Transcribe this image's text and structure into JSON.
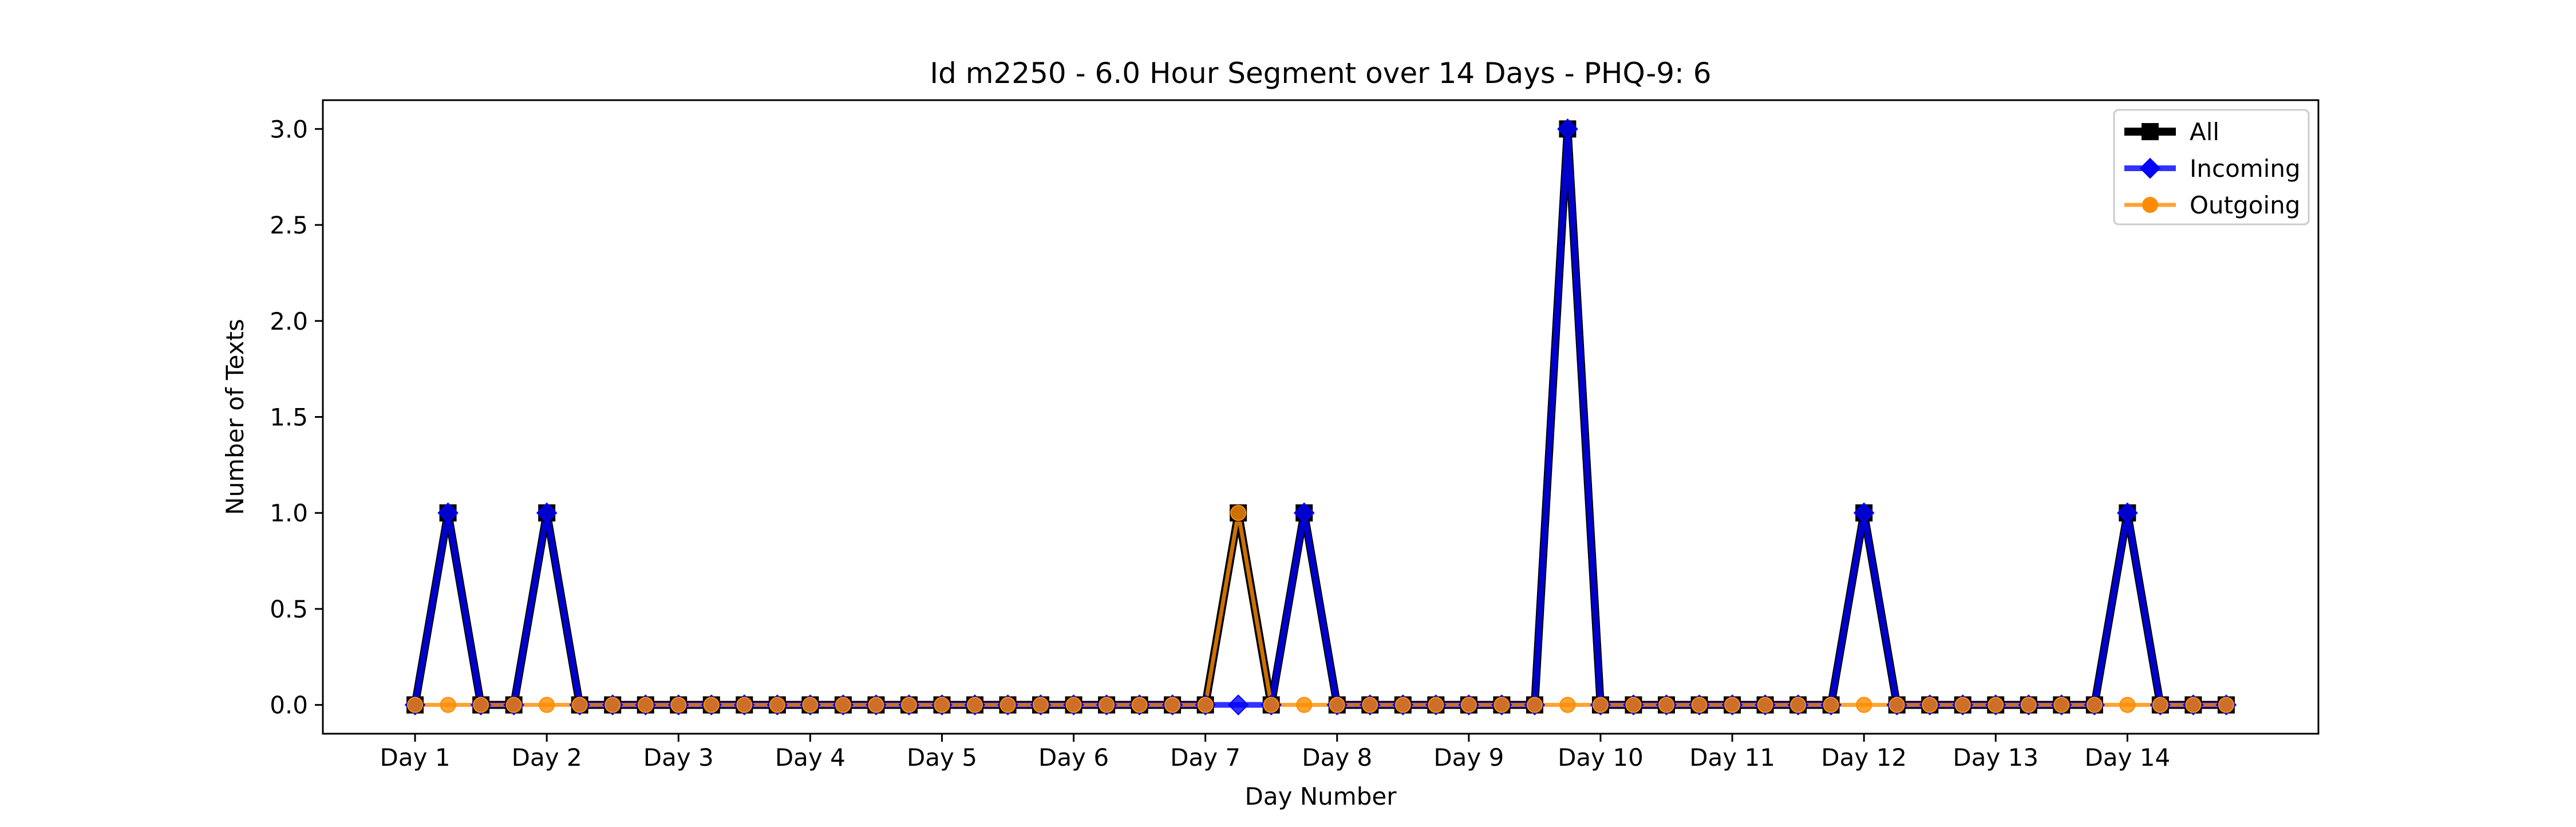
{
  "chart_data": {
    "type": "line",
    "title": "Id m2250 - 6.0 Hour Segment over 14 Days - PHQ-9: 6",
    "xlabel": "Day Number",
    "ylabel": "Number of Texts",
    "xlim": [
      -0.7,
      14.45
    ],
    "ylim": [
      -0.15,
      3.15
    ],
    "x_ticks": [
      {
        "value": 0,
        "label": "Day 1"
      },
      {
        "value": 1,
        "label": "Day 2"
      },
      {
        "value": 2,
        "label": "Day 3"
      },
      {
        "value": 3,
        "label": "Day 4"
      },
      {
        "value": 4,
        "label": "Day 5"
      },
      {
        "value": 5,
        "label": "Day 6"
      },
      {
        "value": 6,
        "label": "Day 7"
      },
      {
        "value": 7,
        "label": "Day 8"
      },
      {
        "value": 8,
        "label": "Day 9"
      },
      {
        "value": 9,
        "label": "Day 10"
      },
      {
        "value": 10,
        "label": "Day 11"
      },
      {
        "value": 11,
        "label": "Day 12"
      },
      {
        "value": 12,
        "label": "Day 13"
      },
      {
        "value": 13,
        "label": "Day 14"
      }
    ],
    "y_ticks": [
      {
        "value": 0,
        "label": "0.0"
      },
      {
        "value": 0.5,
        "label": "0.5"
      },
      {
        "value": 1,
        "label": "1.0"
      },
      {
        "value": 1.5,
        "label": "1.5"
      },
      {
        "value": 2,
        "label": "2.0"
      },
      {
        "value": 2.5,
        "label": "2.5"
      },
      {
        "value": 3,
        "label": "3.0"
      }
    ],
    "x": [
      0,
      0.25,
      0.5,
      0.75,
      1,
      1.25,
      1.5,
      1.75,
      2,
      2.25,
      2.5,
      2.75,
      3,
      3.25,
      3.5,
      3.75,
      4,
      4.25,
      4.5,
      4.75,
      5,
      5.25,
      5.5,
      5.75,
      6,
      6.25,
      6.5,
      6.75,
      7,
      7.25,
      7.5,
      7.75,
      8,
      8.25,
      8.5,
      8.75,
      9,
      9.25,
      9.5,
      9.75,
      10,
      10.25,
      10.5,
      10.75,
      11,
      11.25,
      11.5,
      11.75,
      12,
      12.25,
      12.5,
      12.75,
      13,
      13.25,
      13.5,
      13.75
    ],
    "series": [
      {
        "name": "All",
        "color": "#000000",
        "marker": "square",
        "values": [
          0,
          1,
          0,
          0,
          1,
          0,
          0,
          0,
          0,
          0,
          0,
          0,
          0,
          0,
          0,
          0,
          0,
          0,
          0,
          0,
          0,
          0,
          0,
          0,
          0,
          1,
          0,
          1,
          0,
          0,
          0,
          0,
          0,
          0,
          0,
          3,
          0,
          0,
          0,
          0,
          0,
          0,
          0,
          0,
          1,
          0,
          0,
          0,
          0,
          0,
          0,
          0,
          1,
          0,
          0,
          0
        ]
      },
      {
        "name": "Incoming",
        "color": "#0000ff",
        "marker": "diamond",
        "values": [
          0,
          1,
          0,
          0,
          1,
          0,
          0,
          0,
          0,
          0,
          0,
          0,
          0,
          0,
          0,
          0,
          0,
          0,
          0,
          0,
          0,
          0,
          0,
          0,
          0,
          0,
          0,
          1,
          0,
          0,
          0,
          0,
          0,
          0,
          0,
          3,
          0,
          0,
          0,
          0,
          0,
          0,
          0,
          0,
          1,
          0,
          0,
          0,
          0,
          0,
          0,
          0,
          1,
          0,
          0,
          0
        ]
      },
      {
        "name": "Outgoing",
        "color": "#ff8c00",
        "marker": "circle",
        "values": [
          0,
          0,
          0,
          0,
          0,
          0,
          0,
          0,
          0,
          0,
          0,
          0,
          0,
          0,
          0,
          0,
          0,
          0,
          0,
          0,
          0,
          0,
          0,
          0,
          0,
          1,
          0,
          0,
          0,
          0,
          0,
          0,
          0,
          0,
          0,
          0,
          0,
          0,
          0,
          0,
          0,
          0,
          0,
          0,
          0,
          0,
          0,
          0,
          0,
          0,
          0,
          0,
          0,
          0,
          0,
          0
        ]
      }
    ],
    "grid": false,
    "legend_position": "top-right"
  }
}
